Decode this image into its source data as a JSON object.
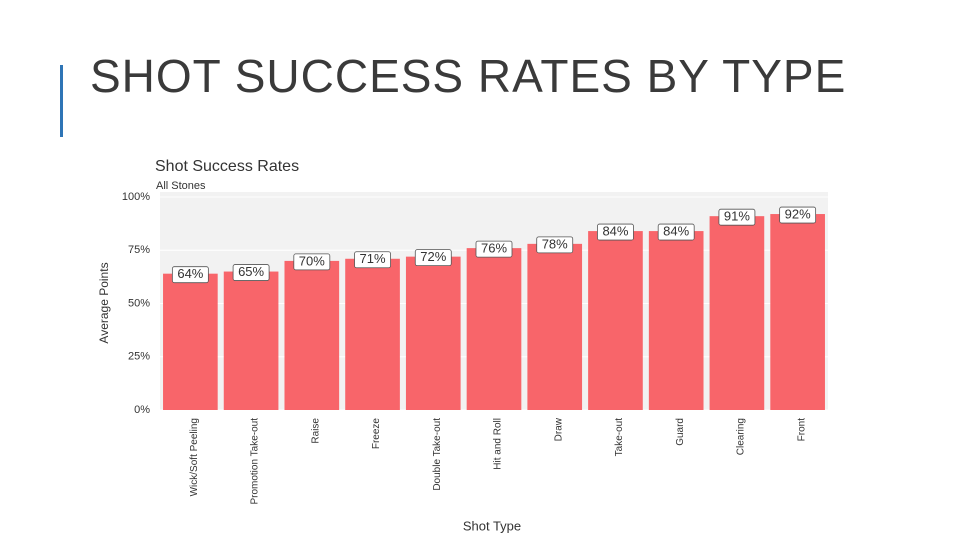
{
  "slide_title": "SHOT SUCCESS RATES BY TYPE",
  "chart_data": {
    "type": "bar",
    "title": "Shot Success Rates",
    "subtitle": "All Stones",
    "y_label": "Average Points",
    "x_label": "Shot Type",
    "categories": [
      "Wick/Soft Peeling",
      "Promotion Take-out",
      "Raise",
      "Freeze",
      "Double Take-out",
      "Hit and Roll",
      "Draw",
      "Take-out",
      "Guard",
      "Clearing",
      "Front"
    ],
    "values": [
      64,
      65,
      70,
      71,
      72,
      76,
      78,
      84,
      84,
      91,
      92
    ],
    "value_labels": [
      "64%",
      "65%",
      "70%",
      "71%",
      "72%",
      "76%",
      "78%",
      "84%",
      "84%",
      "91%",
      "92%"
    ],
    "color": "#f8656a",
    "ylim": [
      0,
      100
    ],
    "yticks": [
      {
        "value": 0,
        "label": "0%"
      },
      {
        "value": 25,
        "label": "25%"
      },
      {
        "value": 50,
        "label": "50%"
      },
      {
        "value": 75,
        "label": "75%"
      },
      {
        "value": 100,
        "label": "100%"
      }
    ],
    "grid": true
  }
}
